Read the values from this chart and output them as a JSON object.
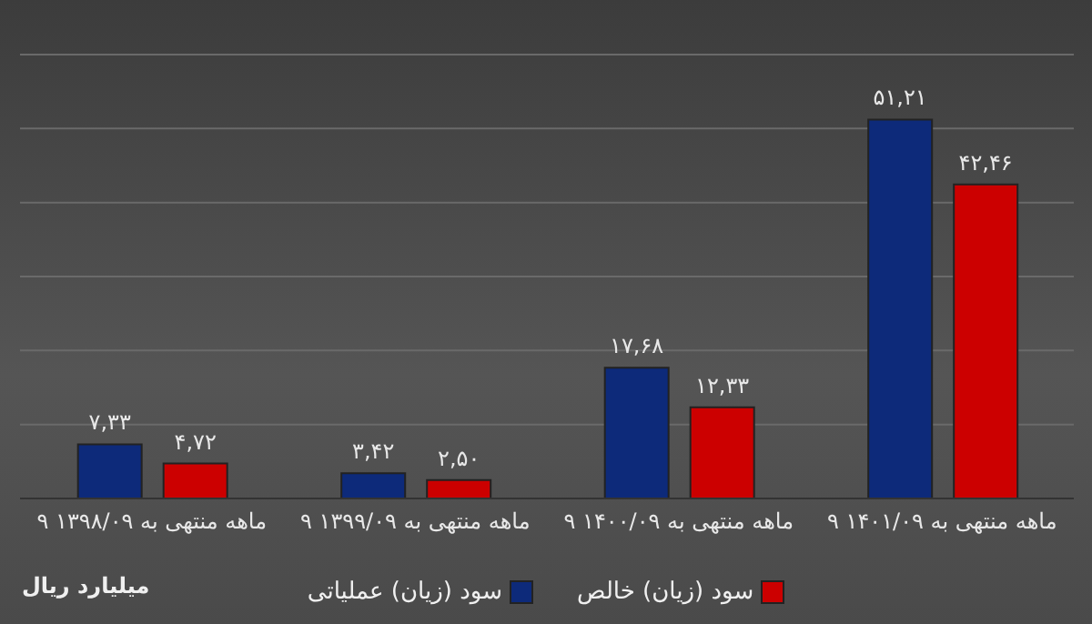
{
  "chart_data": {
    "type": "bar",
    "categories": [
      "۹ ماهه منتهی به ۱۳۹۸/۰۹",
      "۹ ماهه منتهی به ۱۳۹۹/۰۹",
      "۹ ماهه منتهی به ۱۴۰۰/۰۹",
      "۹ ماهه منتهی به ۱۴۰۱/۰۹"
    ],
    "series": [
      {
        "name": "سود (زیان) عملیاتی",
        "color": "#0d2a7a",
        "values": [
          7.33,
          3.42,
          17.68,
          51.21
        ],
        "value_labels": [
          "۷,۳۳",
          "۳,۴۲",
          "۱۷,۶۸",
          "۵۱,۲۱"
        ]
      },
      {
        "name": "سود (زیان) خالص",
        "color": "#cc0000",
        "values": [
          4.72,
          2.5,
          12.33,
          42.46
        ],
        "value_labels": [
          "۴,۷۲",
          "۲,۵۰",
          "۱۲,۳۳",
          "۴۲,۴۶"
        ]
      }
    ],
    "ylim": [
      0,
      60
    ],
    "yticks": [
      {
        "value": 0,
        "label": null
      },
      {
        "value": 10,
        "label": null
      },
      {
        "value": 20,
        "label": null
      },
      {
        "value": 30,
        "label": null
      },
      {
        "value": 40,
        "label": null
      },
      {
        "value": 50,
        "label": null
      },
      {
        "value": 60,
        "label": null
      }
    ],
    "tick_labels": "x",
    "grid": "y",
    "legend": "bottom",
    "annotations": [
      "میلیارد ریال"
    ]
  }
}
